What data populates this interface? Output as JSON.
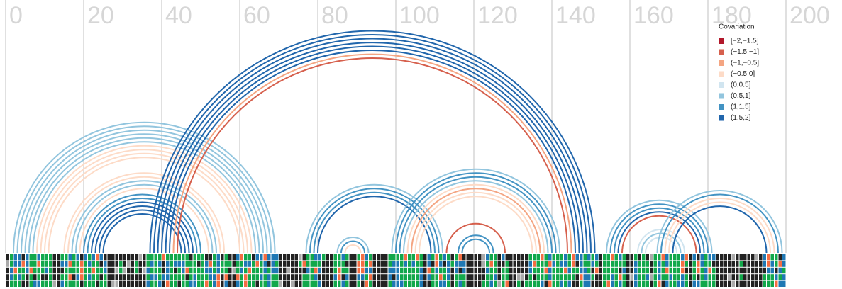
{
  "chart_data": {
    "type": "arc",
    "xlim": [
      0,
      200
    ],
    "xticks": [
      0,
      20,
      40,
      60,
      80,
      100,
      120,
      140,
      160,
      180,
      200
    ],
    "grid": true,
    "legend_title": "Covariation",
    "legend_position": "top-right",
    "legend": [
      {
        "label": "[−2,−1.5]",
        "color": "#b2182b"
      },
      {
        "label": "(−1.5,−1]",
        "color": "#d6604d"
      },
      {
        "label": "(−1,−0.5]",
        "color": "#f4a582"
      },
      {
        "label": "(−0.5,0]",
        "color": "#fddbc7"
      },
      {
        "label": "(0,0.5]",
        "color": "#d1e5f0"
      },
      {
        "label": "(0.5,1]",
        "color": "#92c5de"
      },
      {
        "label": "(1,1.5]",
        "color": "#4393c3"
      },
      {
        "label": "(1.5,2]",
        "color": "#2166ac"
      }
    ],
    "arcs": [
      {
        "i": 2,
        "j": 69,
        "color": "#92c5de"
      },
      {
        "i": 3,
        "j": 68,
        "color": "#92c5de"
      },
      {
        "i": 4,
        "j": 67,
        "color": "#92c5de"
      },
      {
        "i": 5,
        "j": 66,
        "color": "#92c5de"
      },
      {
        "i": 6,
        "j": 65,
        "color": "#92c5de"
      },
      {
        "i": 7,
        "j": 64,
        "color": "#92c5de"
      },
      {
        "i": 8,
        "j": 63,
        "color": "#fddbc7"
      },
      {
        "i": 9,
        "j": 62,
        "color": "#fddbc7"
      },
      {
        "i": 10,
        "j": 61,
        "color": "#fddbc7"
      },
      {
        "i": 11,
        "j": 60,
        "color": "#fddbc7"
      },
      {
        "i": 15,
        "j": 56,
        "color": "#fddbc7"
      },
      {
        "i": 16,
        "j": 55,
        "color": "#fddbc7"
      },
      {
        "i": 17,
        "j": 54,
        "color": "#92c5de"
      },
      {
        "i": 18,
        "j": 53,
        "color": "#92c5de"
      },
      {
        "i": 19,
        "j": 52,
        "color": "#fddbc7"
      },
      {
        "i": 20,
        "j": 50,
        "color": "#4393c3"
      },
      {
        "i": 21,
        "j": 49,
        "color": "#4393c3"
      },
      {
        "i": 22,
        "j": 48,
        "color": "#2166ac"
      },
      {
        "i": 23,
        "j": 47,
        "color": "#2166ac"
      },
      {
        "i": 24,
        "j": 46,
        "color": "#2166ac"
      },
      {
        "i": 25,
        "j": 45,
        "color": "#2166ac"
      },
      {
        "i": 37,
        "j": 151,
        "color": "#2166ac"
      },
      {
        "i": 38,
        "j": 150,
        "color": "#2166ac"
      },
      {
        "i": 39,
        "j": 149,
        "color": "#2166ac"
      },
      {
        "i": 40,
        "j": 148,
        "color": "#2166ac"
      },
      {
        "i": 41,
        "j": 147,
        "color": "#2166ac"
      },
      {
        "i": 42,
        "j": 146,
        "color": "#2166ac"
      },
      {
        "i": 43,
        "j": 145,
        "color": "#f4a582"
      },
      {
        "i": 44,
        "j": 144,
        "color": "#d6604d"
      },
      {
        "i": 77,
        "j": 112,
        "color": "#92c5de"
      },
      {
        "i": 78,
        "j": 111,
        "color": "#4393c3"
      },
      {
        "i": 79,
        "j": 110,
        "color": "#4393c3"
      },
      {
        "i": 80,
        "j": 109,
        "color": "#2166ac"
      },
      {
        "i": 85,
        "j": 93,
        "color": "#92c5de"
      },
      {
        "i": 86,
        "j": 92,
        "color": "#4393c3"
      },
      {
        "i": 87,
        "j": 91,
        "color": "#fddbc7"
      },
      {
        "i": 99,
        "j": 142,
        "color": "#92c5de"
      },
      {
        "i": 100,
        "j": 141,
        "color": "#4393c3"
      },
      {
        "i": 101,
        "j": 140,
        "color": "#4393c3"
      },
      {
        "i": 102,
        "j": 139,
        "color": "#92c5de"
      },
      {
        "i": 103,
        "j": 138,
        "color": "#fddbc7"
      },
      {
        "i": 104,
        "j": 137,
        "color": "#f4a582"
      },
      {
        "i": 105,
        "j": 136,
        "color": "#fddbc7"
      },
      {
        "i": 106,
        "j": 135,
        "color": "#fddbc7"
      },
      {
        "i": 113,
        "j": 128,
        "color": "#d6604d"
      },
      {
        "i": 116,
        "j": 125,
        "color": "#4393c3"
      },
      {
        "i": 117,
        "j": 124,
        "color": "#4393c3"
      },
      {
        "i": 154,
        "j": 181,
        "color": "#92c5de"
      },
      {
        "i": 155,
        "j": 180,
        "color": "#4393c3"
      },
      {
        "i": 156,
        "j": 179,
        "color": "#4393c3"
      },
      {
        "i": 157,
        "j": 178,
        "color": "#2166ac"
      },
      {
        "i": 158,
        "j": 177,
        "color": "#d6604d"
      },
      {
        "i": 162,
        "j": 174,
        "color": "#d1e5f0"
      },
      {
        "i": 163,
        "j": 173,
        "color": "#92c5de"
      },
      {
        "i": 164,
        "j": 172,
        "color": "#d1e5f0"
      },
      {
        "i": 167,
        "j": 199,
        "color": "#92c5de"
      },
      {
        "i": 168,
        "j": 198,
        "color": "#4393c3"
      },
      {
        "i": 169,
        "j": 197,
        "color": "#fddbc7"
      },
      {
        "i": 170,
        "j": 196,
        "color": "#fddbc7"
      },
      {
        "i": 171,
        "j": 195,
        "color": "#2166ac"
      }
    ]
  }
}
